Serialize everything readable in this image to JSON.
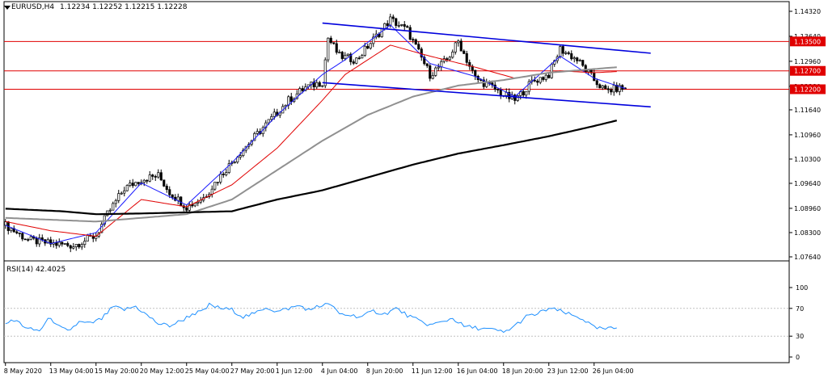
{
  "header": {
    "symbol": "EURUSD,H4",
    "ohlc": "1.12234 1.12252 1.12215 1.12228",
    "rsi_label": "RSI(14) 42.4025"
  },
  "colors": {
    "candle": "#000000",
    "ma_fast": "#1a1aff",
    "ma_mid": "#e00000",
    "ma_slow_gray": "#909090",
    "ma_slow_black": "#000000",
    "channel": "#0000dd",
    "hline": "#e00000",
    "rsi": "#1e90ff",
    "price_tag_bg": "#e00000"
  },
  "price_axis": {
    "min": 1.0764,
    "max": 1.1432,
    "ticks": [
      "1.14320",
      "1.13640",
      "1.12960",
      "1.12280",
      "1.11640",
      "1.10960",
      "1.10300",
      "1.09640",
      "1.08960",
      "1.08300",
      "1.07640"
    ],
    "tick_values": [
      1.1432,
      1.1364,
      1.1296,
      1.1228,
      1.1164,
      1.1096,
      1.103,
      1.0964,
      1.0896,
      1.083,
      1.0764
    ]
  },
  "levels": [
    {
      "value": 1.135,
      "label": "1.13500"
    },
    {
      "value": 1.127,
      "label": "1.12700"
    },
    {
      "value": 1.122,
      "label": "1.12200"
    }
  ],
  "rsi_axis": {
    "min": 0,
    "max": 100,
    "ticks": [
      "100",
      "70",
      "30",
      "0"
    ],
    "tick_values": [
      100,
      70,
      30,
      0
    ]
  },
  "time_axis": {
    "labels": [
      "8 May 2020",
      "13 May 04:00",
      "15 May 20:00",
      "20 May 12:00",
      "25 May 04:00",
      "27 May 20:00",
      "1 Jun 12:00",
      "4 Jun 04:00",
      "8 Jun 20:00",
      "11 Jun 12:00",
      "16 Jun 04:00",
      "18 Jun 20:00",
      "23 Jun 12:00",
      "26 Jun 04:00"
    ],
    "label_bars": [
      0,
      16,
      32,
      48,
      64,
      80,
      96,
      112,
      128,
      144,
      160,
      176,
      192,
      208
    ]
  },
  "chart_data": {
    "type": "candlestick",
    "symbol": "EURUSD",
    "timeframe": "H4",
    "bar_count": 220,
    "keypoints": [
      [
        0,
        1.085
      ],
      [
        8,
        1.081
      ],
      [
        16,
        1.08
      ],
      [
        24,
        1.0795
      ],
      [
        32,
        1.0822
      ],
      [
        36,
        1.088
      ],
      [
        42,
        1.095
      ],
      [
        48,
        1.0975
      ],
      [
        54,
        1.0985
      ],
      [
        58,
        1.094
      ],
      [
        64,
        1.09
      ],
      [
        70,
        1.0925
      ],
      [
        76,
        1.0985
      ],
      [
        82,
        1.104
      ],
      [
        88,
        1.109
      ],
      [
        94,
        1.114
      ],
      [
        100,
        1.119
      ],
      [
        106,
        1.1225
      ],
      [
        112,
        1.124
      ],
      [
        114,
        1.136
      ],
      [
        118,
        1.131
      ],
      [
        124,
        1.13
      ],
      [
        130,
        1.1355
      ],
      [
        136,
        1.141
      ],
      [
        142,
        1.138
      ],
      [
        146,
        1.132
      ],
      [
        150,
        1.126
      ],
      [
        156,
        1.13
      ],
      [
        160,
        1.135
      ],
      [
        166,
        1.125
      ],
      [
        172,
        1.1225
      ],
      [
        176,
        1.1205
      ],
      [
        180,
        1.119
      ],
      [
        186,
        1.124
      ],
      [
        192,
        1.126
      ],
      [
        196,
        1.133
      ],
      [
        202,
        1.13
      ],
      [
        208,
        1.1245
      ],
      [
        212,
        1.1215
      ],
      [
        216,
        1.1222
      ],
      [
        219,
        1.1223
      ]
    ],
    "last": {
      "open": 1.12234,
      "high": 1.12252,
      "low": 1.12215,
      "close": 1.12228
    },
    "moving_averages": [
      {
        "keypoints": [
          [
            0,
            1.085
          ],
          [
            16,
            1.08
          ],
          [
            32,
            1.083
          ],
          [
            48,
            1.0965
          ],
          [
            64,
            1.0905
          ],
          [
            80,
            1.102
          ],
          [
            96,
            1.115
          ],
          [
            112,
            1.126
          ],
          [
            120,
            1.13
          ],
          [
            136,
            1.1395
          ],
          [
            150,
            1.129
          ],
          [
            166,
            1.1255
          ],
          [
            180,
            1.12
          ],
          [
            196,
            1.131
          ],
          [
            208,
            1.125
          ],
          [
            219,
            1.1222
          ]
        ]
      },
      {
        "keypoints": [
          [
            0,
            1.086
          ],
          [
            16,
            1.0835
          ],
          [
            32,
            1.082
          ],
          [
            48,
            1.092
          ],
          [
            64,
            1.09
          ],
          [
            80,
            1.096
          ],
          [
            96,
            1.106
          ],
          [
            112,
            1.119
          ],
          [
            120,
            1.126
          ],
          [
            136,
            1.134
          ],
          [
            150,
            1.131
          ],
          [
            166,
            1.128
          ],
          [
            180,
            1.125
          ],
          [
            196,
            1.127
          ],
          [
            208,
            1.1265
          ],
          [
            216,
            1.1268
          ]
        ]
      },
      {
        "keypoints": [
          [
            0,
            1.087
          ],
          [
            32,
            1.086
          ],
          [
            64,
            1.088
          ],
          [
            80,
            1.092
          ],
          [
            96,
            1.1
          ],
          [
            112,
            1.108
          ],
          [
            128,
            1.115
          ],
          [
            144,
            1.12
          ],
          [
            160,
            1.123
          ],
          [
            176,
            1.1245
          ],
          [
            192,
            1.1265
          ],
          [
            208,
            1.1275
          ],
          [
            216,
            1.128
          ]
        ]
      },
      {
        "keypoints": [
          [
            0,
            1.0895
          ],
          [
            20,
            1.0888
          ],
          [
            32,
            1.088
          ],
          [
            48,
            1.0882
          ],
          [
            64,
            1.0885
          ],
          [
            80,
            1.0888
          ],
          [
            96,
            1.092
          ],
          [
            112,
            1.0945
          ],
          [
            128,
            1.098
          ],
          [
            144,
            1.1015
          ],
          [
            160,
            1.1045
          ],
          [
            176,
            1.1068
          ],
          [
            192,
            1.1092
          ],
          [
            208,
            1.112
          ],
          [
            216,
            1.1135
          ]
        ]
      }
    ],
    "channel": {
      "upper": [
        [
          112,
          1.14
        ],
        [
          228,
          1.1318
        ]
      ],
      "lower": [
        [
          112,
          1.1238
        ],
        [
          228,
          1.1172
        ]
      ]
    },
    "rsi": {
      "keypoints": [
        [
          0,
          50
        ],
        [
          4,
          52
        ],
        [
          8,
          40
        ],
        [
          12,
          38
        ],
        [
          16,
          58
        ],
        [
          18,
          45
        ],
        [
          22,
          37
        ],
        [
          26,
          50
        ],
        [
          30,
          48
        ],
        [
          34,
          55
        ],
        [
          38,
          72
        ],
        [
          42,
          68
        ],
        [
          46,
          73
        ],
        [
          50,
          60
        ],
        [
          54,
          48
        ],
        [
          58,
          45
        ],
        [
          62,
          52
        ],
        [
          66,
          62
        ],
        [
          70,
          66
        ],
        [
          72,
          75
        ],
        [
          76,
          70
        ],
        [
          80,
          68
        ],
        [
          84,
          58
        ],
        [
          88,
          62
        ],
        [
          92,
          72
        ],
        [
          96,
          65
        ],
        [
          100,
          70
        ],
        [
          104,
          74
        ],
        [
          108,
          66
        ],
        [
          110,
          75
        ],
        [
          112,
          72
        ],
        [
          114,
          78
        ],
        [
          118,
          62
        ],
        [
          122,
          60
        ],
        [
          126,
          58
        ],
        [
          130,
          66
        ],
        [
          134,
          62
        ],
        [
          138,
          70
        ],
        [
          142,
          60
        ],
        [
          146,
          52
        ],
        [
          150,
          46
        ],
        [
          154,
          50
        ],
        [
          158,
          56
        ],
        [
          162,
          44
        ],
        [
          166,
          42
        ],
        [
          170,
          40
        ],
        [
          174,
          38
        ],
        [
          176,
          35
        ],
        [
          180,
          45
        ],
        [
          184,
          58
        ],
        [
          188,
          62
        ],
        [
          192,
          70
        ],
        [
          196,
          66
        ],
        [
          200,
          60
        ],
        [
          204,
          55
        ],
        [
          208,
          42
        ],
        [
          212,
          40
        ],
        [
          216,
          42
        ]
      ]
    }
  }
}
